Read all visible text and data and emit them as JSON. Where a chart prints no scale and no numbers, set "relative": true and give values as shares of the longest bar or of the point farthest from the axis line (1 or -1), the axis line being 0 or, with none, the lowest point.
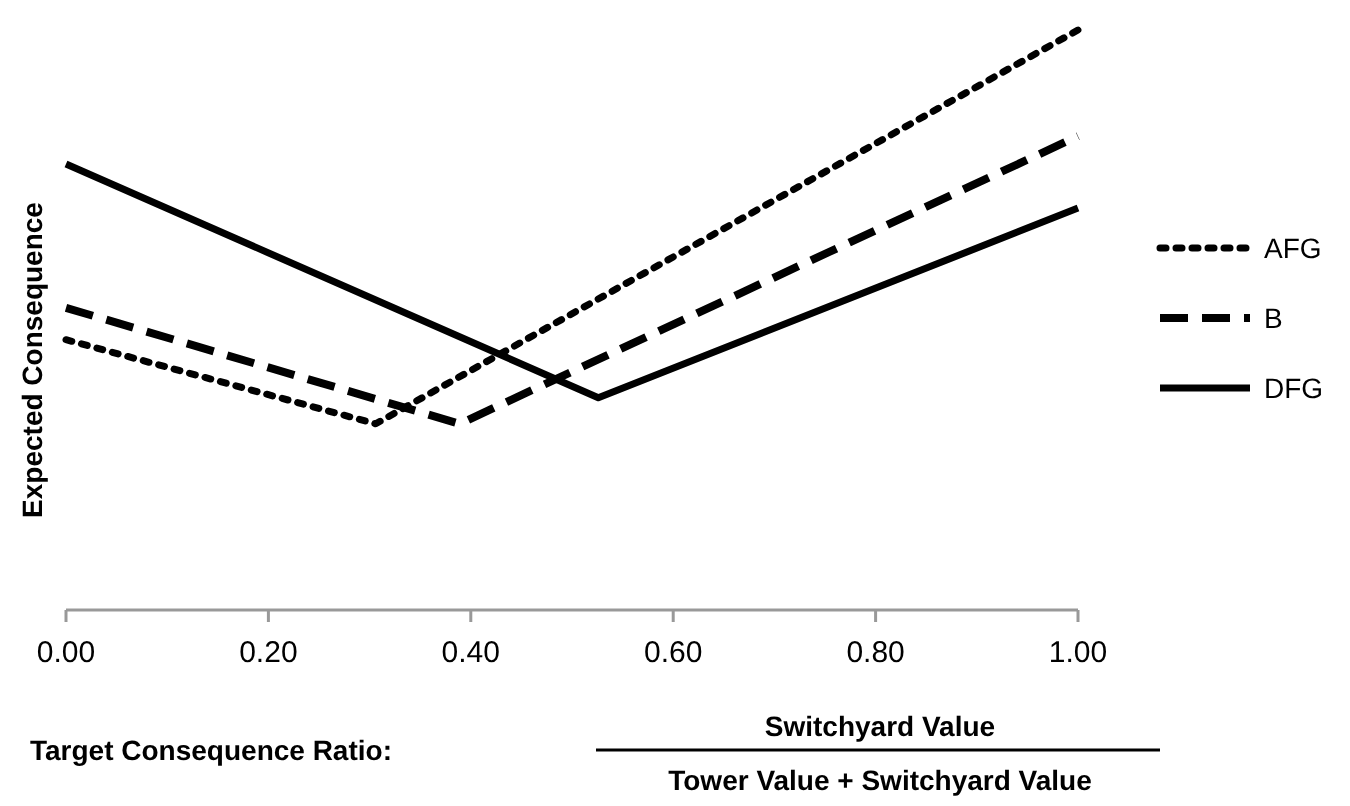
{
  "chart_data": {
    "type": "line",
    "relative": true,
    "xlabel": "Target Consequence Ratio:",
    "ylabel": "Expected Consequence",
    "annotations": [
      "Switchyard Value",
      "Tower Value + Switchyard Value"
    ],
    "xlim": [
      0,
      1
    ],
    "xticks": [
      {
        "value": 0,
        "label": "0.00"
      },
      {
        "value": 0.2,
        "label": "0.20"
      },
      {
        "value": 0.4,
        "label": "0.40"
      },
      {
        "value": 0.6,
        "label": "0.60"
      },
      {
        "value": 0.8,
        "label": "0.80"
      },
      {
        "value": 1,
        "label": "1.00"
      }
    ],
    "grid": false,
    "legend": "right",
    "tick_labels": "x",
    "series": [
      {
        "name": "AFG",
        "color": "#000000",
        "line_style": "dotted",
        "x": [
          0,
          0.306,
          1
        ],
        "values": [
          0.466,
          0.321,
          1
        ]
      },
      {
        "name": "B",
        "color": "#000000",
        "line_style": "dashed",
        "x": [
          0,
          0.389,
          1
        ],
        "values": [
          0.521,
          0.321,
          0.817
        ]
      },
      {
        "name": "DFG",
        "color": "#000000",
        "line_style": "solid",
        "x": [
          0,
          0.526,
          1
        ],
        "values": [
          0.769,
          0.366,
          0.693
        ]
      }
    ]
  }
}
